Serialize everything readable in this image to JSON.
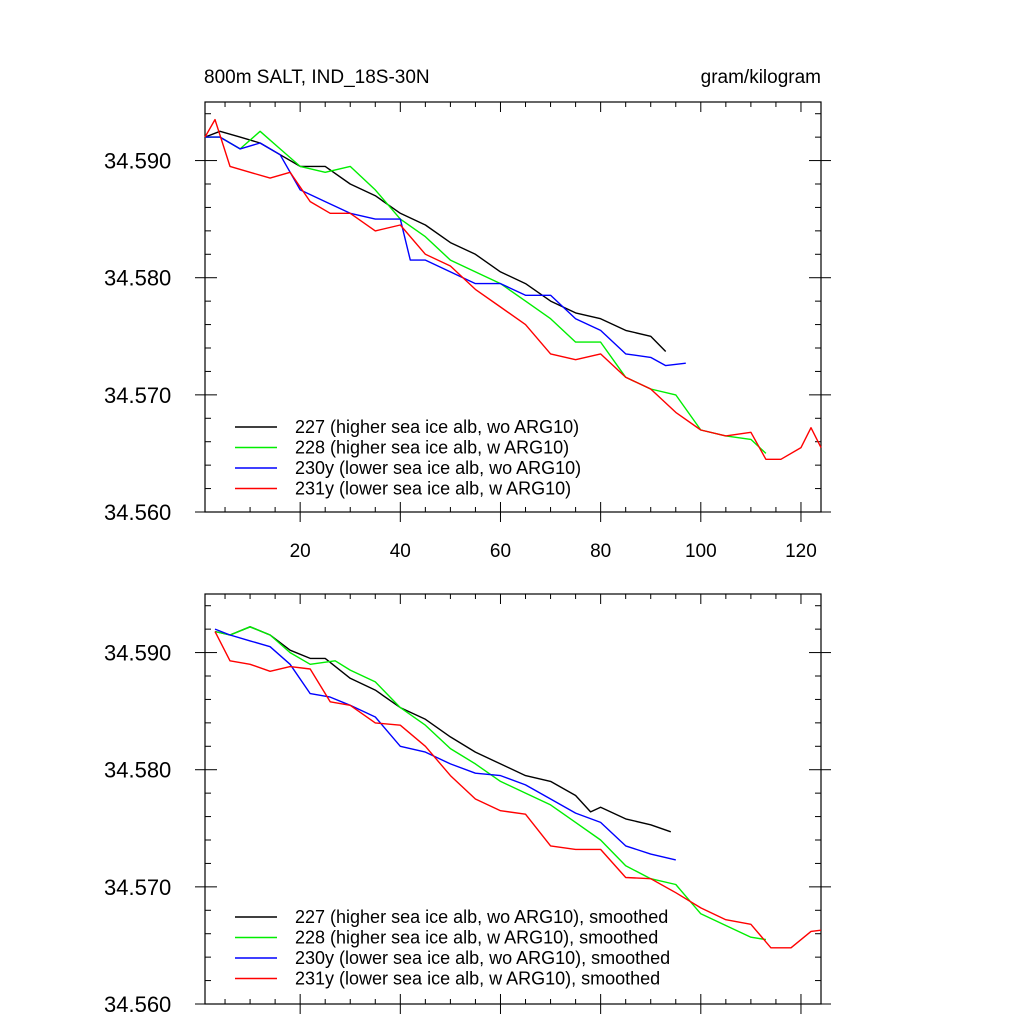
{
  "header": {
    "left_title": "800m SALT, IND_18S-30N",
    "right_title": "gram/kilogram"
  },
  "colors": {
    "s227": "#000000",
    "s228": "#00ee00",
    "s230y": "#0000ff",
    "s231y": "#ff0000"
  },
  "chart_data": [
    {
      "type": "line",
      "name": "raw",
      "title": "800m SALT, IND_18S-30N",
      "units": "gram/kilogram",
      "xlim": [
        1,
        124
      ],
      "ylim": [
        34.56,
        34.595
      ],
      "x_ticks": [
        20,
        40,
        60,
        80,
        100,
        120
      ],
      "x_tick_labels": [
        "20",
        "40",
        "60",
        "80",
        "100",
        "120"
      ],
      "y_ticks": [
        34.56,
        34.57,
        34.58,
        34.59
      ],
      "y_tick_labels": [
        "34.560",
        "34.570",
        "34.580",
        "34.590"
      ],
      "legend_position": "bottom-left",
      "series": [
        {
          "name": "227 (higher sea ice alb, wo ARG10)",
          "color_key": "s227",
          "x": [
            1,
            4,
            8,
            12,
            16,
            20,
            25,
            30,
            35,
            40,
            45,
            50,
            55,
            60,
            65,
            70,
            75,
            80,
            85,
            90,
            93
          ],
          "values": [
            34.592,
            34.5925,
            34.592,
            34.5915,
            34.5905,
            34.5895,
            34.5895,
            34.588,
            34.587,
            34.5855,
            34.5845,
            34.583,
            34.582,
            34.5805,
            34.5795,
            34.578,
            34.577,
            34.5765,
            34.5755,
            34.575,
            34.5737
          ]
        },
        {
          "name": "228 (higher sea ice alb, w ARG10)",
          "color_key": "s228",
          "x": [
            1,
            4,
            8,
            12,
            16,
            20,
            25,
            30,
            35,
            40,
            45,
            50,
            55,
            60,
            65,
            70,
            75,
            80,
            85,
            90,
            95,
            100,
            105,
            110,
            113
          ],
          "values": [
            34.592,
            34.592,
            34.591,
            34.5925,
            34.591,
            34.5895,
            34.589,
            34.5895,
            34.5875,
            34.585,
            34.5835,
            34.5815,
            34.5805,
            34.5795,
            34.578,
            34.5765,
            34.5745,
            34.5745,
            34.5715,
            34.5705,
            34.57,
            34.567,
            34.5665,
            34.5662,
            34.565
          ]
        },
        {
          "name": "230y (lower sea ice alb, wo ARG10)",
          "color_key": "s230y",
          "x": [
            1,
            4,
            8,
            12,
            16,
            20,
            25,
            30,
            35,
            40,
            42,
            45,
            50,
            55,
            60,
            65,
            70,
            75,
            80,
            85,
            90,
            93,
            97
          ],
          "values": [
            34.592,
            34.592,
            34.591,
            34.5915,
            34.5905,
            34.5875,
            34.5865,
            34.5855,
            34.585,
            34.585,
            34.5815,
            34.5815,
            34.5805,
            34.5795,
            34.5795,
            34.5785,
            34.5785,
            34.5765,
            34.5755,
            34.5735,
            34.5732,
            34.5725,
            34.5727
          ]
        },
        {
          "name": "231y (lower sea ice alb, w ARG10)",
          "color_key": "s231y",
          "x": [
            1,
            3,
            6,
            10,
            14,
            18,
            22,
            26,
            30,
            35,
            40,
            45,
            50,
            55,
            60,
            65,
            70,
            75,
            80,
            85,
            90,
            95,
            100,
            105,
            110,
            113,
            116,
            120,
            122,
            124
          ],
          "values": [
            34.592,
            34.5935,
            34.5895,
            34.589,
            34.5885,
            34.589,
            34.5865,
            34.5855,
            34.5855,
            34.584,
            34.5845,
            34.582,
            34.581,
            34.579,
            34.5775,
            34.576,
            34.5735,
            34.573,
            34.5735,
            34.5715,
            34.5705,
            34.5685,
            34.567,
            34.5665,
            34.5668,
            34.5645,
            34.5645,
            34.5655,
            34.5672,
            34.5655
          ]
        }
      ]
    },
    {
      "type": "line",
      "name": "smoothed",
      "xlim": [
        1,
        124
      ],
      "ylim": [
        34.56,
        34.595
      ],
      "y_ticks": [
        34.56,
        34.57,
        34.58,
        34.59
      ],
      "y_tick_labels": [
        "34.560",
        "34.570",
        "34.580",
        "34.590"
      ],
      "legend_position": "bottom-left",
      "series": [
        {
          "name": "227 (higher sea ice alb, wo ARG10), smoothed",
          "color_key": "s227",
          "x": [
            3,
            6,
            10,
            14,
            18,
            22,
            25,
            30,
            35,
            40,
            45,
            50,
            55,
            60,
            65,
            70,
            75,
            78,
            80,
            85,
            90,
            94
          ],
          "values": [
            34.5918,
            34.5915,
            34.5922,
            34.5915,
            34.5902,
            34.5895,
            34.5895,
            34.5878,
            34.5868,
            34.5853,
            34.5843,
            34.5828,
            34.5815,
            34.5805,
            34.5795,
            34.579,
            34.5778,
            34.5764,
            34.5768,
            34.5758,
            34.5753,
            34.5747
          ]
        },
        {
          "name": "228 (higher sea ice alb, w ARG10), smoothed",
          "color_key": "s228",
          "x": [
            3,
            6,
            10,
            14,
            18,
            22,
            27,
            30,
            35,
            40,
            45,
            50,
            55,
            60,
            65,
            70,
            75,
            80,
            85,
            90,
            95,
            100,
            105,
            110,
            113
          ],
          "values": [
            34.5918,
            34.5915,
            34.5922,
            34.5915,
            34.59,
            34.589,
            34.5893,
            34.5885,
            34.5875,
            34.5853,
            34.5838,
            34.5818,
            34.5805,
            34.579,
            34.578,
            34.577,
            34.5755,
            34.574,
            34.5718,
            34.5707,
            34.5702,
            34.5677,
            34.5667,
            34.5657,
            34.5655
          ]
        },
        {
          "name": "230y (lower sea ice alb, wo ARG10), smoothed",
          "color_key": "s230y",
          "x": [
            3,
            6,
            10,
            14,
            18,
            22,
            26,
            30,
            35,
            40,
            45,
            50,
            55,
            60,
            65,
            70,
            75,
            80,
            85,
            90,
            95
          ],
          "values": [
            34.592,
            34.5915,
            34.591,
            34.5905,
            34.589,
            34.5865,
            34.5862,
            34.5855,
            34.5845,
            34.582,
            34.5815,
            34.5805,
            34.5797,
            34.5795,
            34.5787,
            34.5775,
            34.5763,
            34.5755,
            34.5735,
            34.5728,
            34.5723
          ]
        },
        {
          "name": "231y (lower sea ice alb, w ARG10), smoothed",
          "color_key": "s231y",
          "x": [
            3,
            6,
            10,
            14,
            18,
            22,
            26,
            30,
            35,
            40,
            45,
            50,
            55,
            60,
            65,
            70,
            75,
            80,
            85,
            90,
            95,
            100,
            105,
            110,
            114,
            118,
            122,
            124
          ],
          "values": [
            34.5918,
            34.5893,
            34.589,
            34.5884,
            34.5888,
            34.5886,
            34.5858,
            34.5855,
            34.584,
            34.5838,
            34.582,
            34.5795,
            34.5775,
            34.5765,
            34.5762,
            34.5735,
            34.5732,
            34.5732,
            34.5708,
            34.5707,
            34.5695,
            34.5682,
            34.5672,
            34.5668,
            34.5648,
            34.5648,
            34.5662,
            34.5663
          ]
        }
      ]
    }
  ]
}
